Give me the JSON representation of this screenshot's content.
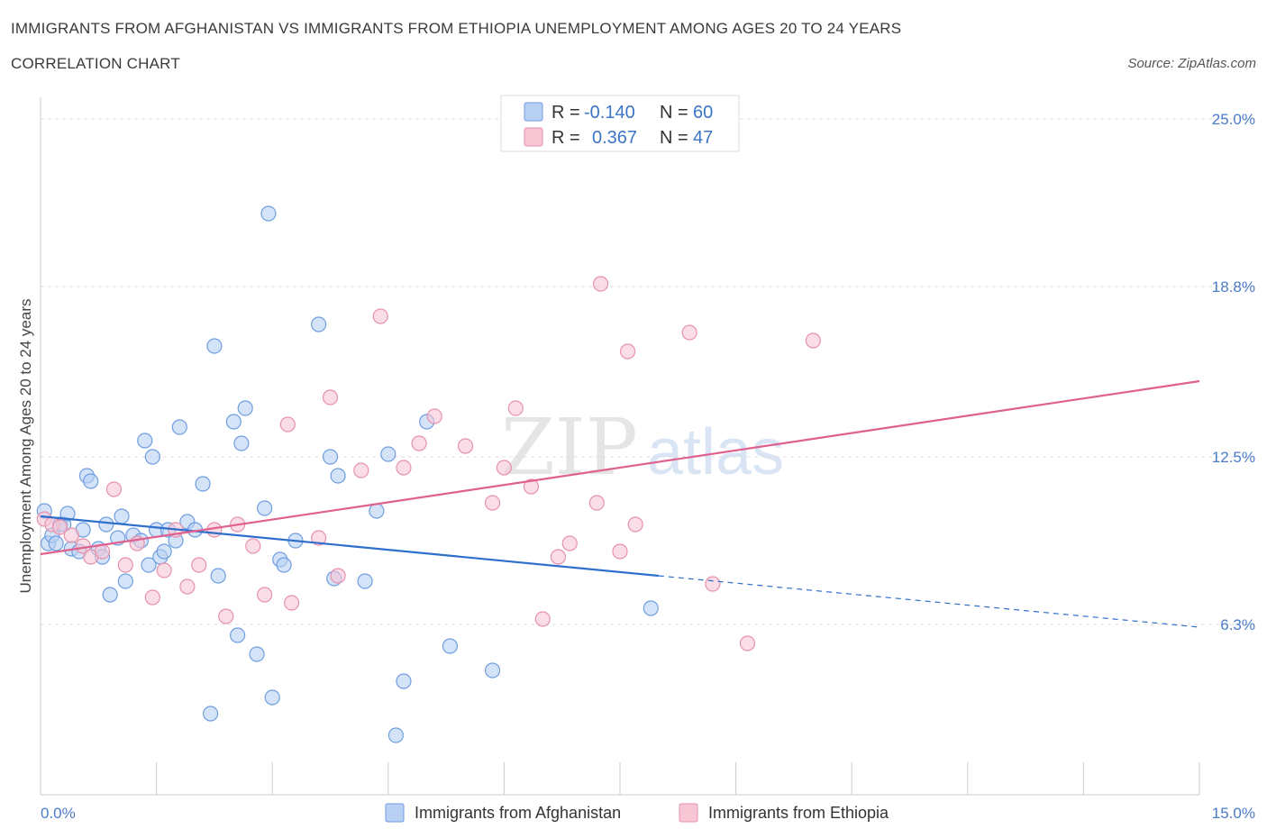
{
  "header": {
    "title": "IMMIGRANTS FROM AFGHANISTAN VS IMMIGRANTS FROM ETHIOPIA UNEMPLOYMENT AMONG AGES 20 TO 24 YEARS",
    "subtitle": "CORRELATION CHART",
    "source": "Source: ZipAtlas.com"
  },
  "watermark": {
    "zip": "ZIP",
    "atlas": "atlas"
  },
  "colors": {
    "afghanistan_fill": "#b7d0f3",
    "afghanistan_stroke": "#6f9ee0",
    "afghanistan_line": "#2f6fcb",
    "ethiopia_fill": "#f7c6d5",
    "ethiopia_stroke": "#e691ad",
    "ethiopia_line": "#e0608e",
    "grid": "#dddddd",
    "tick_label": "#4a7cc9"
  },
  "legend": {
    "rows": [
      {
        "r_label": "R =",
        "r_value": "-0.140",
        "n_label": "N =",
        "n_value": "60"
      },
      {
        "r_label": "R =",
        "r_value": "0.367",
        "n_label": "N =",
        "n_value": "47"
      }
    ]
  },
  "chart_data": {
    "type": "scatter",
    "title": "IMMIGRANTS FROM AFGHANISTAN VS IMMIGRANTS FROM ETHIOPIA UNEMPLOYMENT AMONG AGES 20 TO 24 YEARS",
    "xlabel": "",
    "ylabel": "Unemployment Among Ages 20 to 24 years",
    "xlim": [
      0,
      15
    ],
    "ylim": [
      0,
      25
    ],
    "x_tick_labels": [
      "0.0%",
      "15.0%"
    ],
    "y_ticks": [
      6.3,
      12.5,
      18.8,
      25.0
    ],
    "y_tick_labels": [
      "6.3%",
      "12.5%",
      "18.8%",
      "25.0%"
    ],
    "grid": true,
    "legend_position": "top-center",
    "series": [
      {
        "name": "Immigrants from Afghanistan",
        "r": -0.14,
        "n": 60,
        "trend": {
          "x": [
            0.0,
            8.0
          ],
          "y": [
            10.3,
            8.1
          ]
        },
        "trend_extension": {
          "x": [
            8.0,
            15.0
          ],
          "y": [
            8.1,
            6.2
          ]
        },
        "points": [
          [
            0.05,
            10.5
          ],
          [
            0.1,
            9.3
          ],
          [
            0.15,
            9.6
          ],
          [
            0.2,
            9.3
          ],
          [
            0.25,
            10.0
          ],
          [
            0.3,
            10.0
          ],
          [
            0.35,
            10.4
          ],
          [
            0.4,
            9.1
          ],
          [
            0.5,
            9.0
          ],
          [
            0.55,
            9.8
          ],
          [
            0.6,
            11.8
          ],
          [
            0.65,
            11.6
          ],
          [
            0.75,
            9.1
          ],
          [
            0.8,
            8.8
          ],
          [
            0.85,
            10.0
          ],
          [
            0.9,
            7.4
          ],
          [
            1.0,
            9.5
          ],
          [
            1.05,
            10.3
          ],
          [
            1.1,
            7.9
          ],
          [
            1.2,
            9.6
          ],
          [
            1.3,
            9.4
          ],
          [
            1.35,
            13.1
          ],
          [
            1.4,
            8.5
          ],
          [
            1.45,
            12.5
          ],
          [
            1.5,
            9.8
          ],
          [
            1.55,
            8.8
          ],
          [
            1.6,
            9.0
          ],
          [
            1.65,
            9.8
          ],
          [
            1.75,
            9.4
          ],
          [
            1.8,
            13.6
          ],
          [
            1.9,
            10.1
          ],
          [
            2.1,
            11.5
          ],
          [
            2.2,
            3.0
          ],
          [
            2.25,
            16.6
          ],
          [
            2.3,
            8.1
          ],
          [
            2.5,
            13.8
          ],
          [
            2.55,
            5.9
          ],
          [
            2.6,
            13.0
          ],
          [
            2.65,
            14.3
          ],
          [
            2.8,
            5.2
          ],
          [
            2.9,
            10.6
          ],
          [
            2.95,
            21.5
          ],
          [
            3.0,
            3.6
          ],
          [
            3.1,
            8.7
          ],
          [
            3.15,
            8.5
          ],
          [
            3.3,
            9.4
          ],
          [
            3.6,
            17.4
          ],
          [
            3.75,
            12.5
          ],
          [
            3.85,
            11.8
          ],
          [
            4.2,
            7.9
          ],
          [
            4.35,
            10.5
          ],
          [
            4.5,
            12.6
          ],
          [
            4.6,
            2.2
          ],
          [
            4.7,
            4.2
          ],
          [
            5.0,
            13.8
          ],
          [
            5.3,
            5.5
          ],
          [
            5.85,
            4.6
          ],
          [
            7.9,
            6.9
          ],
          [
            3.8,
            8.0
          ],
          [
            2.0,
            9.8
          ]
        ]
      },
      {
        "name": "Immigrants from Ethiopia",
        "r": 0.367,
        "n": 47,
        "trend": {
          "x": [
            0.0,
            15.0
          ],
          "y": [
            8.9,
            15.3
          ]
        },
        "points": [
          [
            0.05,
            10.2
          ],
          [
            0.15,
            10.0
          ],
          [
            0.25,
            9.9
          ],
          [
            0.4,
            9.6
          ],
          [
            0.55,
            9.2
          ],
          [
            0.65,
            8.8
          ],
          [
            0.8,
            9.0
          ],
          [
            0.95,
            11.3
          ],
          [
            1.1,
            8.5
          ],
          [
            1.25,
            9.3
          ],
          [
            1.45,
            7.3
          ],
          [
            1.6,
            8.3
          ],
          [
            1.75,
            9.8
          ],
          [
            1.9,
            7.7
          ],
          [
            2.05,
            8.5
          ],
          [
            2.25,
            9.8
          ],
          [
            2.4,
            6.6
          ],
          [
            2.55,
            10.0
          ],
          [
            2.75,
            9.2
          ],
          [
            2.9,
            7.4
          ],
          [
            3.2,
            13.7
          ],
          [
            3.25,
            7.1
          ],
          [
            3.6,
            9.5
          ],
          [
            3.75,
            14.7
          ],
          [
            3.85,
            8.1
          ],
          [
            4.15,
            12.0
          ],
          [
            4.4,
            17.7
          ],
          [
            4.7,
            12.1
          ],
          [
            4.9,
            13.0
          ],
          [
            5.1,
            14.0
          ],
          [
            5.5,
            12.9
          ],
          [
            5.85,
            10.8
          ],
          [
            6.0,
            12.1
          ],
          [
            6.15,
            14.3
          ],
          [
            6.35,
            11.4
          ],
          [
            6.5,
            6.5
          ],
          [
            6.7,
            8.8
          ],
          [
            6.85,
            9.3
          ],
          [
            7.2,
            10.8
          ],
          [
            7.25,
            18.9
          ],
          [
            7.5,
            9.0
          ],
          [
            7.6,
            16.4
          ],
          [
            7.7,
            10.0
          ],
          [
            8.4,
            17.1
          ],
          [
            8.7,
            7.8
          ],
          [
            9.15,
            5.6
          ],
          [
            10.0,
            16.8
          ]
        ]
      }
    ]
  }
}
